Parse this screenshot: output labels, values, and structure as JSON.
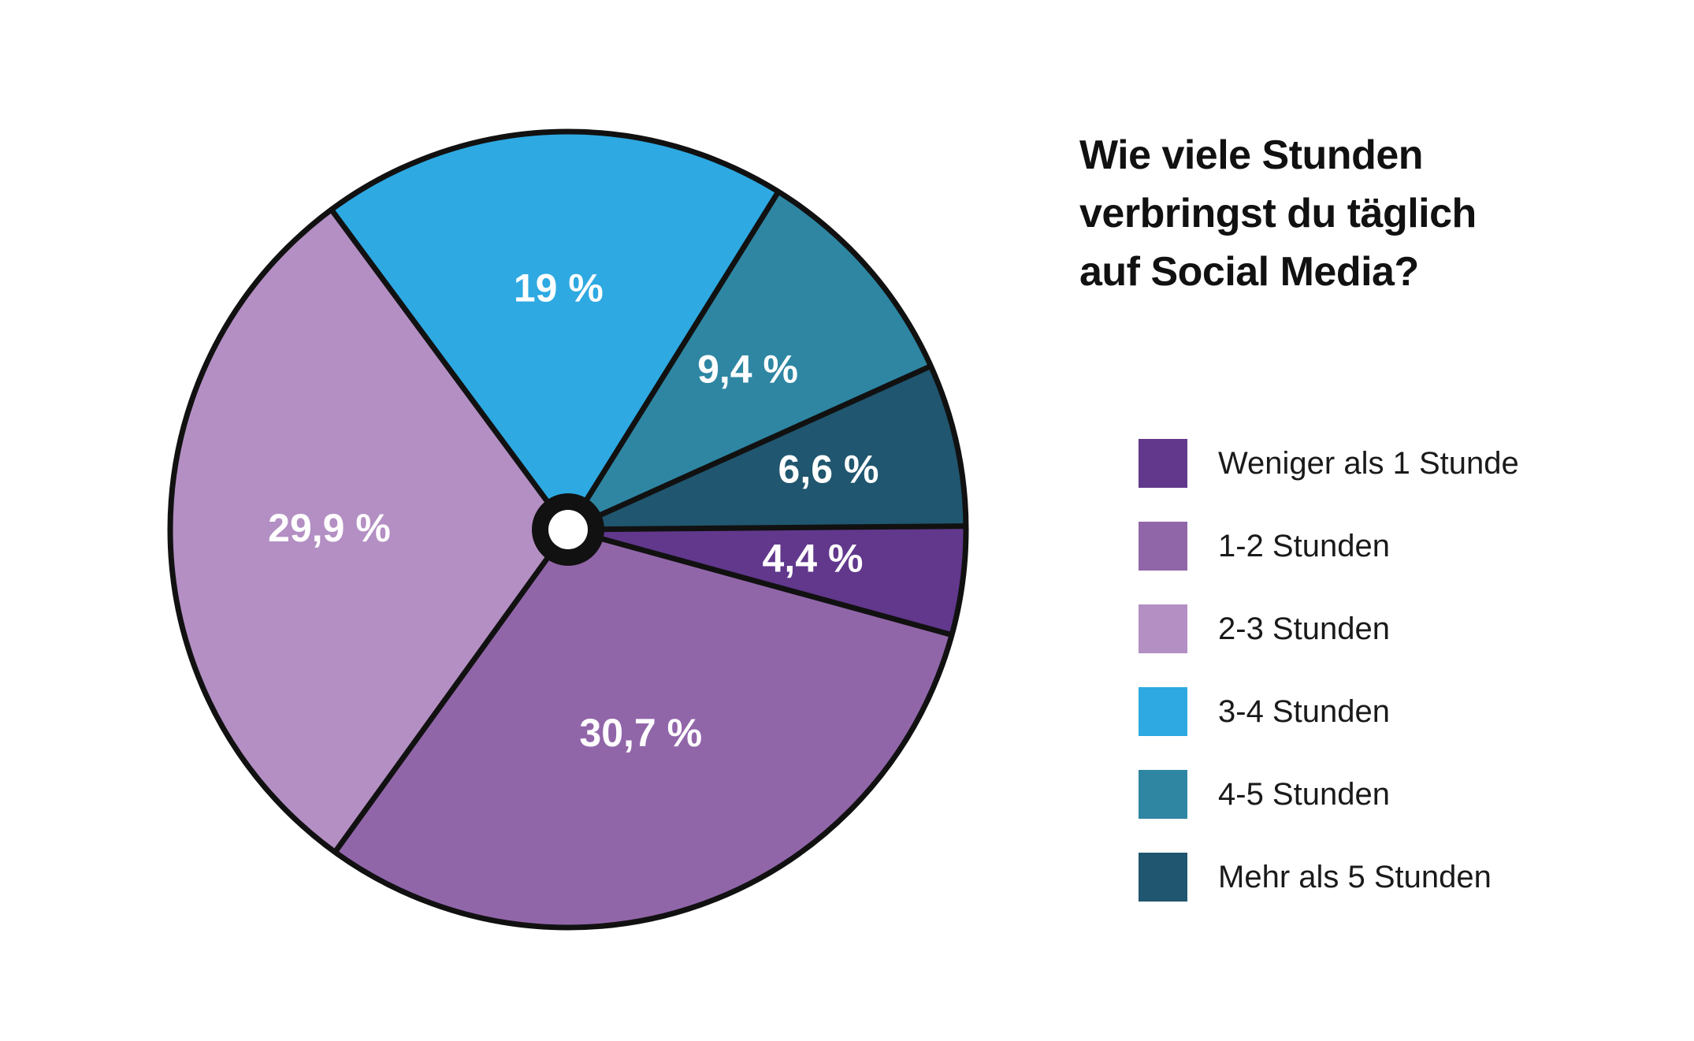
{
  "chart_data": {
    "type": "pie",
    "title": "Wie viele Stunden verbringst du täglich auf Social Media?",
    "title_lines": [
      "Wie viele Stunden",
      "verbringst du täglich",
      "auf Social Media?"
    ],
    "legend_position": "right",
    "slices": [
      {
        "name": "Weniger als 1 Stunde",
        "value": 4.4,
        "label": "4,4 %",
        "color": "#61388c"
      },
      {
        "name": "1-2 Stunden",
        "value": 30.7,
        "label": "30,7 %",
        "color": "#9166a9"
      },
      {
        "name": "2-3 Stunden",
        "value": 29.9,
        "label": "29,9 %",
        "color": "#b38fc3"
      },
      {
        "name": "3-4 Stunden",
        "value": 19,
        "label": "19 %",
        "color": "#2ea9e1"
      },
      {
        "name": "4-5 Stunden",
        "value": 9.4,
        "label": "9,4 %",
        "color": "#2e86a3"
      },
      {
        "name": "Mehr als 5 Stunden",
        "value": 6.6,
        "label": "6,6 %",
        "color": "#20566f"
      }
    ],
    "outline_color": "#111111",
    "center_hole": true
  }
}
